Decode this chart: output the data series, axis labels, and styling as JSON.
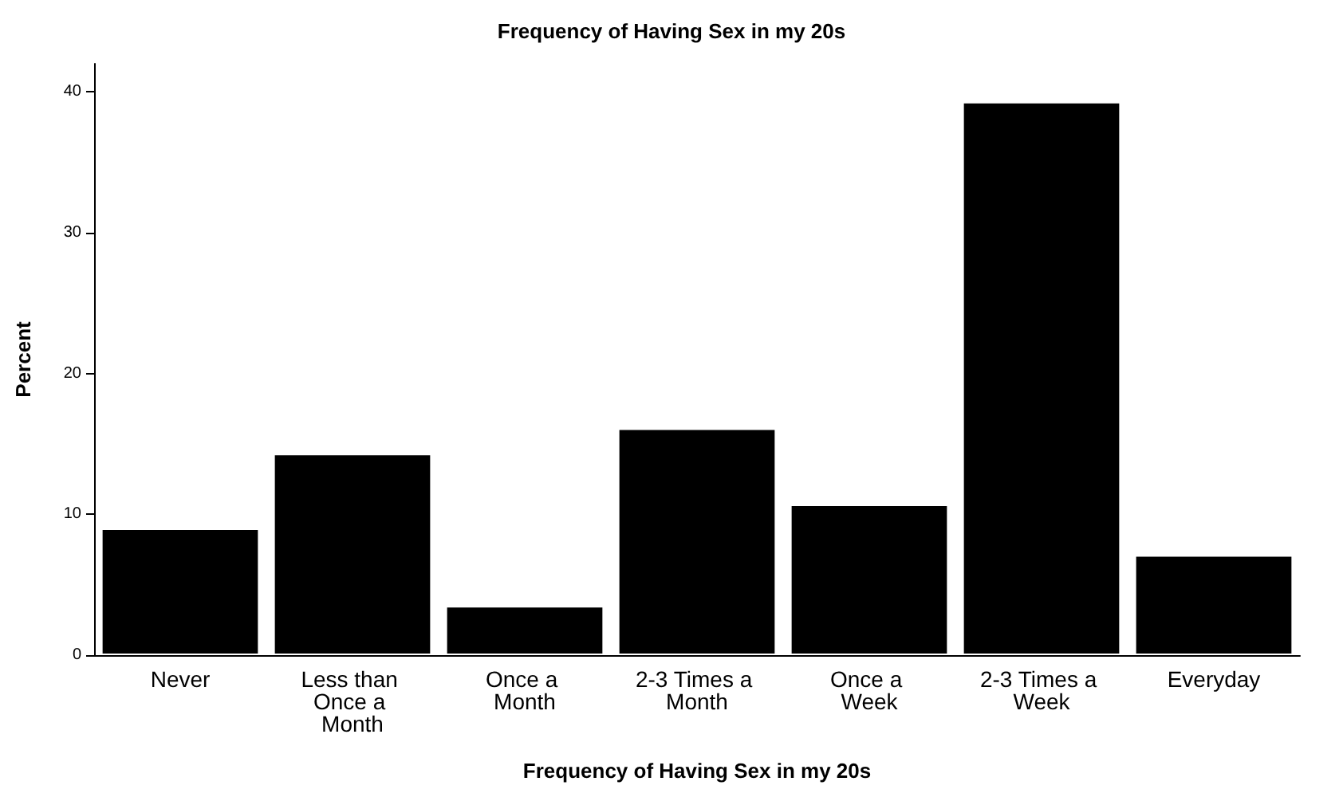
{
  "chart_data": {
    "type": "bar",
    "title": "Frequency of Having Sex in my 20s",
    "xlabel": "Frequency of Having Sex in my 20s",
    "ylabel": "Percent",
    "categories": [
      "Never",
      "Less than Once a Month",
      "Once a Month",
      "2-3 Times a Month",
      "Once a Week",
      "2-3 Times a Week",
      "Everyday"
    ],
    "values": [
      9.0,
      14.3,
      3.5,
      16.1,
      10.7,
      39.3,
      7.1
    ],
    "color": "#000000",
    "ylim": [
      0,
      42
    ],
    "yticks": [
      0,
      10,
      20,
      30,
      40
    ],
    "grid": false
  }
}
